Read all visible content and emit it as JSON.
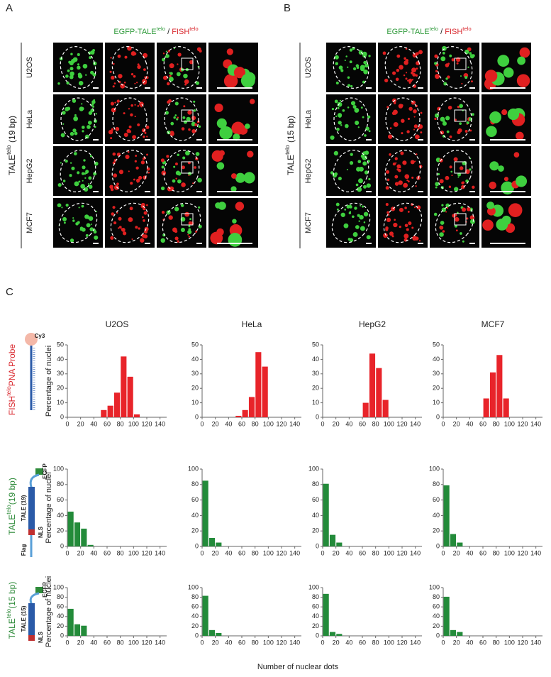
{
  "panels": {
    "a": "A",
    "b": "B",
    "c": "C"
  },
  "panel_a": {
    "header": {
      "p1": "EGFP-TALE",
      "s1": "telo",
      "sep": " / ",
      "p2": "FISH",
      "s2": "telo"
    },
    "side": {
      "p": "TALE",
      "s": "telo",
      "r": " (19 bp)"
    },
    "rows": [
      "U2OS",
      "HeLa",
      "HepG2",
      "MCF7"
    ]
  },
  "panel_b": {
    "header": {
      "p1": "EGFP-TALE",
      "s1": "telo",
      "sep": " / ",
      "p2": "FISH",
      "s2": "telo"
    },
    "side": {
      "p": "TALE",
      "s": "telo",
      "r": " (15 bp)"
    },
    "rows": [
      "U2OS",
      "HeLa",
      "HepG2",
      "MCF7"
    ]
  },
  "row_labels": [
    {
      "p": "FISH",
      "s": "telo",
      "r": "PNA Probe",
      "color": "#d9262c"
    },
    {
      "p": "TALE",
      "s": "telo",
      "r": "(19 bp)",
      "color": "#2e8b3a"
    },
    {
      "p": "TALE",
      "s": "telo",
      "r": "(15 bp)",
      "color": "#2e8b3a"
    }
  ],
  "diagrams": {
    "probe": [
      "Cy3"
    ],
    "tale19": [
      "EGFP",
      "TALE (19)",
      "Flag",
      "NLS"
    ],
    "tale15": [
      "EGFP",
      "TALE (15)",
      "NLS"
    ]
  },
  "x_axis_label": "Number of nuclear dots",
  "chart_data": [
    {
      "type": "histogram",
      "title": "U2OS",
      "ylabel": "Percentage of nuclei",
      "bins": [
        50,
        60,
        70,
        80,
        90,
        100,
        110
      ],
      "values": [
        5,
        8,
        17,
        42,
        28,
        2
      ],
      "color": "#e8242a",
      "xlim": [
        0,
        150
      ],
      "ylim": [
        0,
        50
      ],
      "xticks": [
        0,
        20,
        40,
        60,
        80,
        100,
        120,
        140
      ],
      "yticks": [
        0,
        10,
        20,
        30,
        40,
        50
      ]
    },
    {
      "type": "histogram",
      "title": "HeLa",
      "bins": [
        50,
        60,
        70,
        80,
        90,
        100
      ],
      "values": [
        1,
        5,
        14,
        45,
        35
      ],
      "color": "#e8242a",
      "xlim": [
        0,
        150
      ],
      "ylim": [
        0,
        50
      ],
      "xticks": [
        0,
        20,
        40,
        60,
        80,
        100,
        120,
        140
      ],
      "yticks": [
        0,
        10,
        20,
        30,
        40,
        50
      ]
    },
    {
      "type": "histogram",
      "title": "HepG2",
      "bins": [
        60,
        70,
        80,
        90,
        100
      ],
      "values": [
        10,
        44,
        34,
        12
      ],
      "color": "#e8242a",
      "xlim": [
        0,
        150
      ],
      "ylim": [
        0,
        50
      ],
      "xticks": [
        0,
        20,
        40,
        60,
        80,
        100,
        120,
        140
      ],
      "yticks": [
        0,
        10,
        20,
        30,
        40,
        50
      ]
    },
    {
      "type": "histogram",
      "title": "MCF7",
      "bins": [
        60,
        70,
        80,
        90,
        100
      ],
      "values": [
        13,
        31,
        43,
        13
      ],
      "color": "#e8242a",
      "xlim": [
        0,
        150
      ],
      "ylim": [
        0,
        50
      ],
      "xticks": [
        0,
        20,
        40,
        60,
        80,
        100,
        120,
        140
      ],
      "yticks": [
        0,
        10,
        20,
        30,
        40,
        50
      ]
    },
    {
      "type": "histogram",
      "ylabel": "Percentage of nuclei",
      "bins": [
        0,
        10,
        20,
        30,
        40
      ],
      "values": [
        45,
        31,
        23,
        2
      ],
      "color": "#238b3a",
      "xlim": [
        0,
        150
      ],
      "ylim": [
        0,
        100
      ],
      "xticks": [
        0,
        20,
        40,
        60,
        80,
        100,
        120,
        140
      ],
      "yticks": [
        0,
        20,
        40,
        60,
        80,
        100
      ]
    },
    {
      "type": "histogram",
      "bins": [
        0,
        10,
        20,
        30
      ],
      "values": [
        85,
        11,
        5
      ],
      "color": "#238b3a",
      "xlim": [
        0,
        150
      ],
      "ylim": [
        0,
        100
      ],
      "xticks": [
        0,
        20,
        40,
        60,
        80,
        100,
        120,
        140
      ],
      "yticks": [
        0,
        20,
        40,
        60,
        80,
        100
      ]
    },
    {
      "type": "histogram",
      "bins": [
        0,
        10,
        20,
        30
      ],
      "values": [
        81,
        15,
        5
      ],
      "color": "#238b3a",
      "xlim": [
        0,
        150
      ],
      "ylim": [
        0,
        100
      ],
      "xticks": [
        0,
        20,
        40,
        60,
        80,
        100,
        120,
        140
      ],
      "yticks": [
        0,
        20,
        40,
        60,
        80,
        100
      ]
    },
    {
      "type": "histogram",
      "bins": [
        0,
        10,
        20,
        30
      ],
      "values": [
        79,
        16,
        5
      ],
      "color": "#238b3a",
      "xlim": [
        0,
        150
      ],
      "ylim": [
        0,
        100
      ],
      "xticks": [
        0,
        20,
        40,
        60,
        80,
        100,
        120,
        140
      ],
      "yticks": [
        0,
        20,
        40,
        60,
        80,
        100
      ]
    },
    {
      "type": "histogram",
      "ylabel": "Percentage of nuclei",
      "bins": [
        0,
        10,
        20,
        30
      ],
      "values": [
        56,
        24,
        21
      ],
      "color": "#238b3a",
      "xlim": [
        0,
        150
      ],
      "ylim": [
        0,
        100
      ],
      "xticks": [
        0,
        20,
        40,
        60,
        80,
        100,
        120,
        140
      ],
      "yticks": [
        0,
        20,
        40,
        60,
        80,
        100
      ]
    },
    {
      "type": "histogram",
      "bins": [
        0,
        10,
        20,
        30
      ],
      "values": [
        83,
        12,
        6
      ],
      "color": "#238b3a",
      "xlim": [
        0,
        150
      ],
      "ylim": [
        0,
        100
      ],
      "xticks": [
        0,
        20,
        40,
        60,
        80,
        100,
        120,
        140
      ],
      "yticks": [
        0,
        20,
        40,
        60,
        80,
        100
      ]
    },
    {
      "type": "histogram",
      "bins": [
        0,
        10,
        20,
        30
      ],
      "values": [
        87,
        8,
        4
      ],
      "color": "#238b3a",
      "xlim": [
        0,
        150
      ],
      "ylim": [
        0,
        100
      ],
      "xticks": [
        0,
        20,
        40,
        60,
        80,
        100,
        120,
        140
      ],
      "yticks": [
        0,
        20,
        40,
        60,
        80,
        100
      ]
    },
    {
      "type": "histogram",
      "bins": [
        0,
        10,
        20,
        30
      ],
      "values": [
        81,
        12,
        8
      ],
      "color": "#238b3a",
      "xlim": [
        0,
        150
      ],
      "ylim": [
        0,
        100
      ],
      "xticks": [
        0,
        20,
        40,
        60,
        80,
        100,
        120,
        140
      ],
      "yticks": [
        0,
        20,
        40,
        60,
        80,
        100
      ]
    }
  ]
}
